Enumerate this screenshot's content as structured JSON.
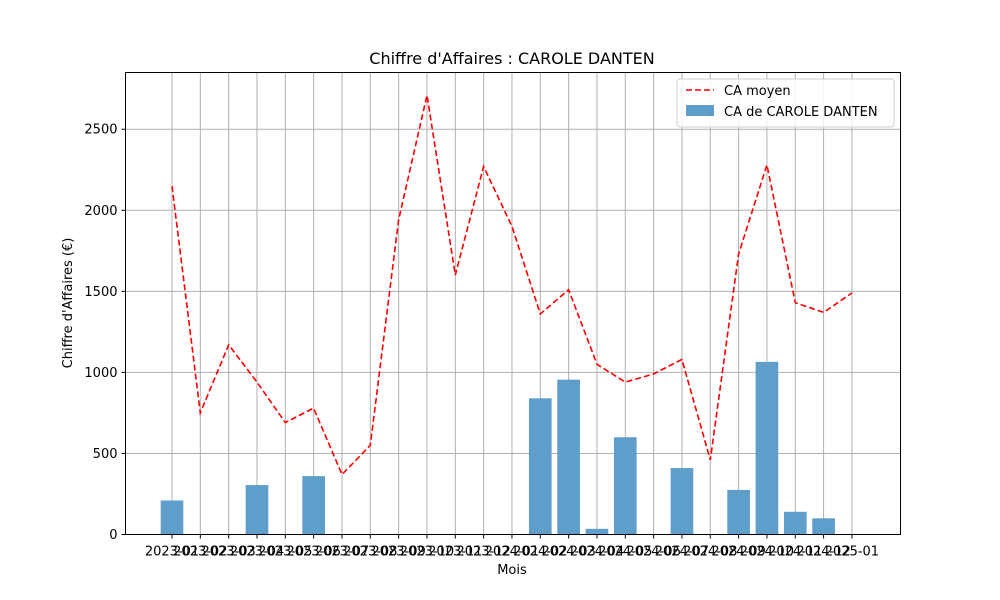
{
  "chart_data": {
    "type": "bar",
    "title": "Chiffre d'Affaires : CAROLE DANTEN",
    "xlabel": "Mois",
    "ylabel": "Chiffre d'Affaires (€)",
    "ylim": [
      0,
      2850
    ],
    "yticks": [
      0,
      500,
      1000,
      1500,
      2000,
      2500
    ],
    "grid": true,
    "legend_position": "top-right",
    "categories": [
      "2023-01",
      "2023-02",
      "2023-03",
      "2023-04",
      "2023-05",
      "2023-06",
      "2023-07",
      "2023-08",
      "2023-09",
      "2023-10",
      "2023-11",
      "2023-12",
      "2024-01",
      "2024-02",
      "2024-03",
      "2024-04",
      "2024-05",
      "2024-06",
      "2024-07",
      "2024-08",
      "2024-09",
      "2024-10",
      "2024-11",
      "2024-12",
      "2025-01"
    ],
    "series": [
      {
        "name": "CA moyen",
        "kind": "line",
        "style": "dashed",
        "color": "#ff0000",
        "values": [
          2150,
          750,
          1170,
          940,
          690,
          780,
          370,
          550,
          1940,
          2710,
          1600,
          2270,
          1900,
          1360,
          1510,
          1050,
          940,
          990,
          1080,
          460,
          1730,
          2280,
          1430,
          1370,
          1490
        ]
      },
      {
        "name": "CA de CAROLE DANTEN",
        "kind": "bar",
        "color": "#5f9ecb",
        "values": [
          210,
          0,
          0,
          305,
          0,
          360,
          0,
          0,
          0,
          0,
          0,
          0,
          0,
          840,
          955,
          35,
          600,
          0,
          410,
          0,
          275,
          1065,
          140,
          100,
          0
        ]
      }
    ],
    "legend": [
      "CA moyen",
      "CA de CAROLE DANTEN"
    ]
  }
}
